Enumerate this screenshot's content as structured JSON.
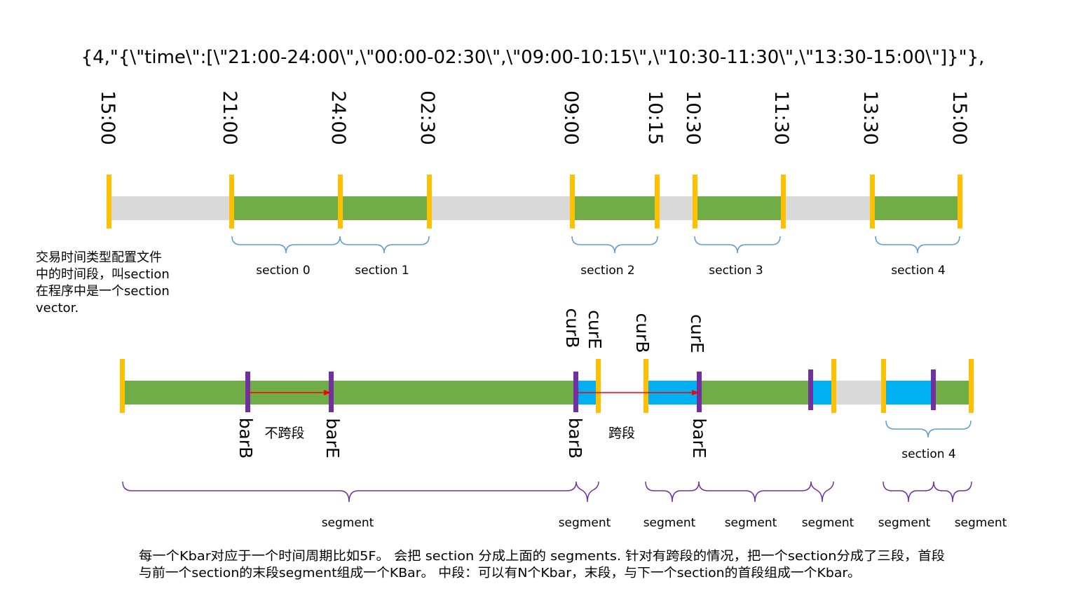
{
  "header_text": "{4,\"{\\\"time\\\":[\\\"21:00-24:00\\\",\\\"00:00-02:30\\\",\\\"09:00-10:15\\\",\\\"10:30-11:30\\\",\\\"13:30-15:00\\\"]}\"},",
  "time_labels": [
    "15:00",
    "21:00",
    "24:00",
    "02:30",
    "09:00",
    "10:15",
    "10:30",
    "11:30",
    "13:30",
    "15:00"
  ],
  "section_labels": [
    "section 0",
    "section 1",
    "section 2",
    "section 3",
    "section 4"
  ],
  "note": [
    "交易时间类型配置文件",
    "中的时间段，叫section",
    "在程序中是一个section",
    "vector."
  ],
  "cur_labels": [
    "curB",
    "curE",
    "curB",
    "curE"
  ],
  "bar_labels": [
    "barB",
    "barE",
    "barB",
    "barE"
  ],
  "cross_labels": {
    "no_cross": "不跨段",
    "cross": "跨段"
  },
  "lower_section_label": "section 4",
  "segment_labels": [
    "segment",
    "segment",
    "segment",
    "segment",
    "segment",
    "segment",
    "segment"
  ],
  "footer_lines": [
    "每一个Kbar对应于一个时间周期比如5F。 会把 section 分成上面的 segments. 针对有跨段的情况，把一个section分成了三段，首段",
    "与前一个section的末段segment组成一个KBar。 中段：可以有N个Kbar，末段，与下一个section的首段组成一个Kbar。"
  ],
  "colors": {
    "session_green": "#70ad47",
    "gap_gray": "#d9d9d9",
    "kbar_blue": "#00b0f0",
    "boundary_yellow": "#ffc000",
    "bar_purple": "#7030a0",
    "arrow_red": "#ff0000",
    "brace_blue": "#5b9bd5",
    "brace_purple": "#7030a0"
  }
}
